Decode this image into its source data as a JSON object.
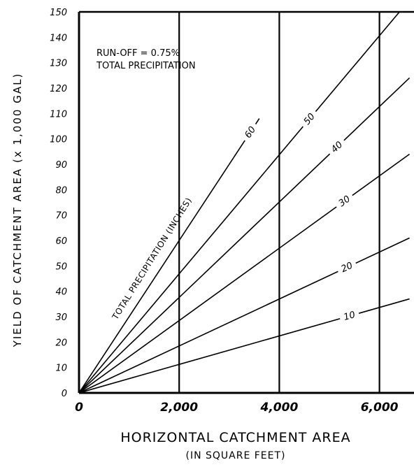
{
  "chart_data": {
    "type": "line",
    "xlabel": "HORIZONTAL CATCHMENT AREA",
    "xlabel_sub": "(IN SQUARE FEET)",
    "ylabel": "YIELD OF CATCHMENT AREA (x 1,000 GAL)",
    "annotation_line1": "RUN-OFF = 0.75%",
    "annotation_line2": "TOTAL PRECIPITATION",
    "curve_family_label": "TOTAL PRECIPITATION (INCHES)",
    "xlim": [
      0,
      6600
    ],
    "ylim": [
      0,
      150
    ],
    "x_ticks": [
      {
        "value": 0,
        "label": "0"
      },
      {
        "value": 2000,
        "label": "2,000"
      },
      {
        "value": 4000,
        "label": "4,000"
      },
      {
        "value": 6000,
        "label": "6,000"
      }
    ],
    "y_ticks": [
      {
        "value": 0,
        "label": "0"
      },
      {
        "value": 10,
        "label": "10"
      },
      {
        "value": 20,
        "label": "20"
      },
      {
        "value": 30,
        "label": "30"
      },
      {
        "value": 40,
        "label": "40"
      },
      {
        "value": 50,
        "label": "50"
      },
      {
        "value": 60,
        "label": "60"
      },
      {
        "value": 70,
        "label": "70"
      },
      {
        "value": 80,
        "label": "80"
      },
      {
        "value": 90,
        "label": "90"
      },
      {
        "value": 100,
        "label": "100"
      },
      {
        "value": 110,
        "label": "110"
      },
      {
        "value": 120,
        "label": "120"
      },
      {
        "value": 130,
        "label": "130"
      },
      {
        "value": 140,
        "label": "140"
      },
      {
        "value": 150,
        "label": "150"
      }
    ],
    "vertical_gridlines": [
      2000,
      4000,
      6000
    ],
    "series": [
      {
        "name": "10",
        "x": [
          0,
          6600
        ],
        "y": [
          0,
          37
        ]
      },
      {
        "name": "20",
        "x": [
          0,
          6600
        ],
        "y": [
          0,
          61
        ]
      },
      {
        "name": "30",
        "x": [
          0,
          6600
        ],
        "y": [
          0,
          94
        ]
      },
      {
        "name": "40",
        "x": [
          0,
          6600
        ],
        "y": [
          0,
          124
        ]
      },
      {
        "name": "50",
        "x": [
          0,
          6400
        ],
        "y": [
          0,
          150
        ]
      },
      {
        "name": "60",
        "x": [
          0,
          3600
        ],
        "y": [
          0,
          108
        ]
      }
    ]
  }
}
